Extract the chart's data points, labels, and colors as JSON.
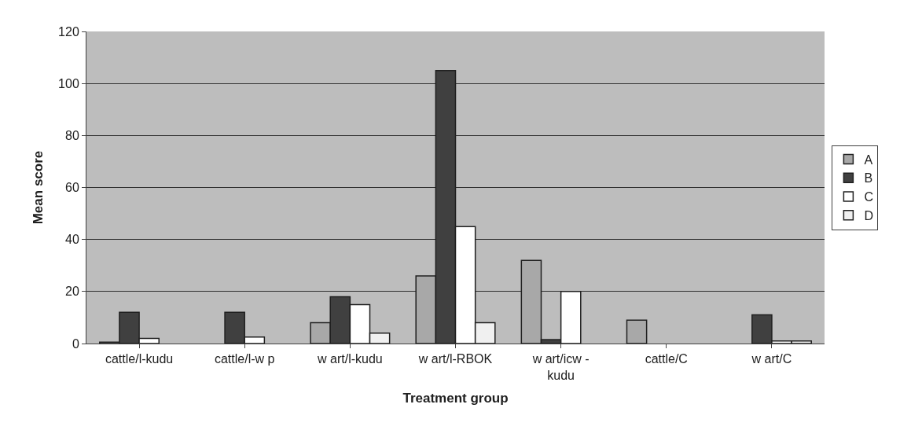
{
  "chart_data": {
    "type": "bar",
    "xlabel": "Treatment group",
    "ylabel": "Mean score",
    "categories": [
      "cattle/l-kudu",
      "cattle/l-w p",
      "w art/l-kudu",
      "w art/l-RBOK",
      "w art/icw -\nkudu",
      "cattle/C",
      "w art/C"
    ],
    "series": [
      {
        "name": "A",
        "color": "#a8a8a8",
        "values": [
          0.5,
          null,
          8,
          26,
          32,
          9,
          null
        ]
      },
      {
        "name": "B",
        "color": "#404040",
        "values": [
          12,
          12,
          18,
          105,
          1.5,
          null,
          11
        ]
      },
      {
        "name": "C",
        "color": "#ffffff",
        "values": [
          2,
          2.5,
          15,
          45,
          20,
          null,
          1
        ]
      },
      {
        "name": "D",
        "color": "#f0f0f0",
        "values": [
          null,
          null,
          4,
          8,
          null,
          null,
          1
        ]
      }
    ],
    "ylim": [
      0,
      120
    ],
    "yticks": [
      0,
      20,
      40,
      60,
      80,
      100,
      120
    ],
    "grid": "y",
    "legend": "right"
  }
}
